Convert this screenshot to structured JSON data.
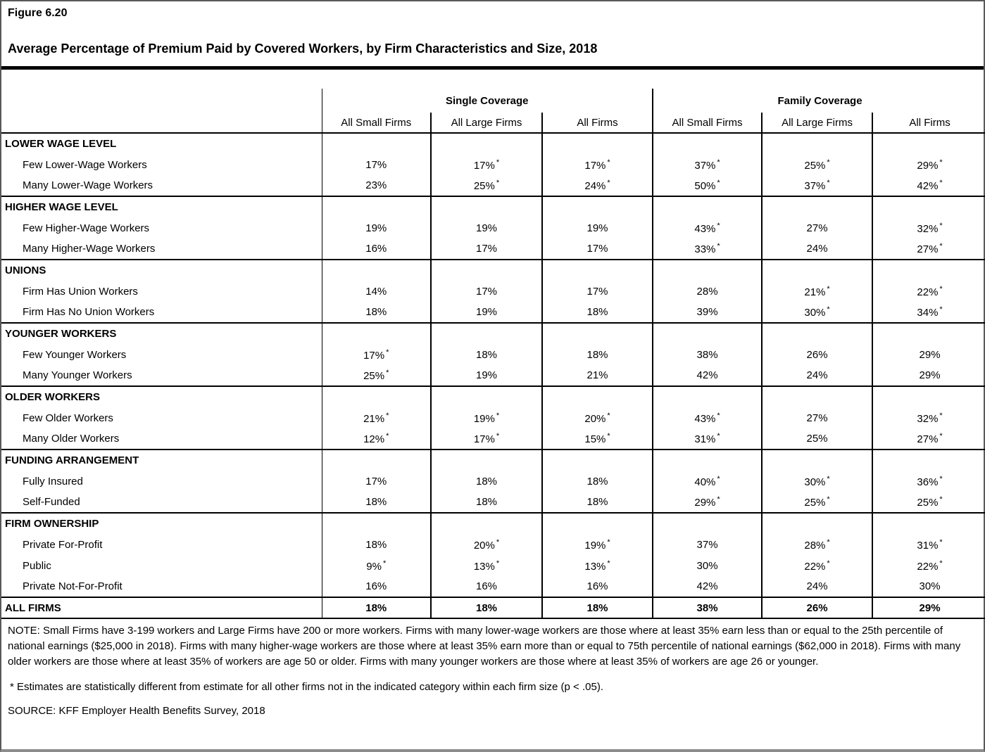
{
  "page": {
    "figure_label": "Figure 6.20",
    "title": "Average Percentage of Premium Paid by Covered Workers, by Firm Characteristics and Size, 2018"
  },
  "chart_data": {
    "type": "table",
    "title": "Average Percentage of Premium Paid by Covered Workers, by Firm Characteristics and Size, 2018",
    "group_headers": [
      "Single Coverage",
      "Family Coverage"
    ],
    "column_headers": [
      "All Small Firms",
      "All Large Firms",
      "All Firms",
      "All Small Firms",
      "All Large Firms",
      "All Firms"
    ],
    "sections": [
      {
        "title": "LOWER WAGE LEVEL",
        "rows": [
          {
            "label": "Few Lower-Wage Workers",
            "values": [
              "17%",
              "17%*",
              "17%*",
              "37%*",
              "25%*",
              "29%*"
            ]
          },
          {
            "label": "Many Lower-Wage Workers",
            "values": [
              "23%",
              "25%*",
              "24%*",
              "50%*",
              "37%*",
              "42%*"
            ]
          }
        ]
      },
      {
        "title": "HIGHER WAGE LEVEL",
        "rows": [
          {
            "label": "Few Higher-Wage Workers",
            "values": [
              "19%",
              "19%",
              "19%",
              "43%*",
              "27%",
              "32%*"
            ]
          },
          {
            "label": "Many Higher-Wage Workers",
            "values": [
              "16%",
              "17%",
              "17%",
              "33%*",
              "24%",
              "27%*"
            ]
          }
        ]
      },
      {
        "title": "UNIONS",
        "rows": [
          {
            "label": "Firm Has Union Workers",
            "values": [
              "14%",
              "17%",
              "17%",
              "28%",
              "21%*",
              "22%*"
            ]
          },
          {
            "label": "Firm Has No Union Workers",
            "values": [
              "18%",
              "19%",
              "18%",
              "39%",
              "30%*",
              "34%*"
            ]
          }
        ]
      },
      {
        "title": "YOUNGER WORKERS",
        "rows": [
          {
            "label": "Few Younger Workers",
            "values": [
              "17%*",
              "18%",
              "18%",
              "38%",
              "26%",
              "29%"
            ]
          },
          {
            "label": "Many Younger Workers",
            "values": [
              "25%*",
              "19%",
              "21%",
              "42%",
              "24%",
              "29%"
            ]
          }
        ]
      },
      {
        "title": "OLDER WORKERS",
        "rows": [
          {
            "label": "Few Older Workers",
            "values": [
              "21%*",
              "19%*",
              "20%*",
              "43%*",
              "27%",
              "32%*"
            ]
          },
          {
            "label": "Many Older Workers",
            "values": [
              "12%*",
              "17%*",
              "15%*",
              "31%*",
              "25%",
              "27%*"
            ]
          }
        ]
      },
      {
        "title": "FUNDING ARRANGEMENT",
        "rows": [
          {
            "label": "Fully Insured",
            "values": [
              "17%",
              "18%",
              "18%",
              "40%*",
              "30%*",
              "36%*"
            ]
          },
          {
            "label": "Self-Funded",
            "values": [
              "18%",
              "18%",
              "18%",
              "29%*",
              "25%*",
              "25%*"
            ]
          }
        ]
      },
      {
        "title": "FIRM OWNERSHIP",
        "rows": [
          {
            "label": "Private For-Profit",
            "values": [
              "18%",
              "20%*",
              "19%*",
              "37%",
              "28%*",
              "31%*"
            ]
          },
          {
            "label": "Public",
            "values": [
              "9%*",
              "13%*",
              "13%*",
              "30%",
              "22%*",
              "22%*"
            ]
          },
          {
            "label": "Private Not-For-Profit",
            "values": [
              "16%",
              "16%",
              "16%",
              "42%",
              "24%",
              "30%"
            ]
          }
        ]
      }
    ],
    "total_row": {
      "label": "ALL FIRMS",
      "values": [
        "18%",
        "18%",
        "18%",
        "38%",
        "26%",
        "29%"
      ]
    },
    "significance_marker": "*"
  },
  "footnotes": {
    "note": "NOTE: Small Firms have 3-199 workers and Large Firms have 200 or more workers. Firms with many lower-wage workers are those where at least 35% earn less than or equal to the 25th percentile of national earnings ($25,000 in 2018). Firms with many higher-wage workers are those where at least 35% earn more than or equal to 75th percentile of national earnings ($62,000 in 2018). Firms with many older workers are those where at least 35% of workers are age 50 or older. Firms with many younger workers are those where at least 35% of workers are age 26 or younger.",
    "asterisk": "* Estimates are statistically different from estimate for all other firms not in the indicated category within each firm size (p < .05).",
    "source": "SOURCE: KFF Employer Health Benefits Survey, 2018"
  }
}
